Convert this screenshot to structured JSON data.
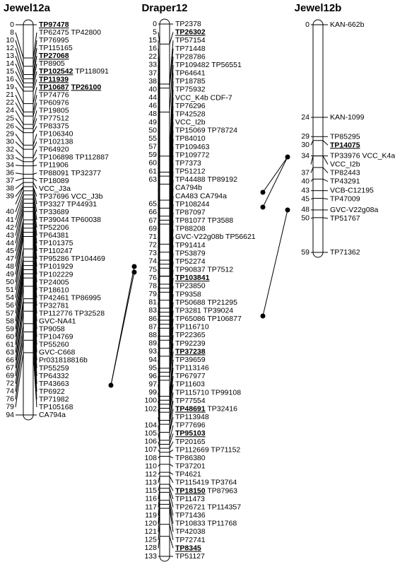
{
  "groups": [
    {
      "title": "Jewel12a",
      "markers": [
        {
          "pos": 0,
          "names": [
            {
              "text": "TP97478",
              "underline": true
            }
          ]
        },
        {
          "pos": 8,
          "names": [
            "TP62475",
            "TP42800"
          ]
        },
        {
          "pos": 10,
          "names": [
            "TP76995"
          ]
        },
        {
          "pos": 12,
          "names": [
            "TP115165"
          ]
        },
        {
          "pos": 13,
          "names": [
            {
              "text": "TP27068",
              "underline": true
            }
          ]
        },
        {
          "pos": 14,
          "names": [
            "TP8905"
          ]
        },
        {
          "pos": 15,
          "names": [
            {
              "text": "TP102542",
              "underline": true
            },
            "TP118091"
          ]
        },
        {
          "pos": 16,
          "names": [
            {
              "text": "TP11939",
              "underline": true
            }
          ]
        },
        {
          "pos": 19,
          "names": [
            {
              "text": "TP10687",
              "underline": true
            },
            {
              "text": "TP26100",
              "underline": true
            }
          ]
        },
        {
          "pos": 21,
          "names": [
            "TP74776"
          ]
        },
        {
          "pos": 22,
          "names": [
            "TP60976"
          ]
        },
        {
          "pos": 24,
          "names": [
            "TP19805"
          ]
        },
        {
          "pos": 25,
          "names": [
            "TP77512"
          ]
        },
        {
          "pos": 26,
          "names": [
            "TP83375"
          ]
        },
        {
          "pos": 29,
          "names": [
            "TP106340"
          ]
        },
        {
          "pos": 30,
          "names": [
            "TP102138"
          ]
        },
        {
          "pos": 32,
          "names": [
            "TP64920"
          ]
        },
        {
          "pos": 33,
          "names": [
            "TP106898",
            "TP112887"
          ]
        },
        {
          "pos": 34,
          "names": [
            "TP11906"
          ]
        },
        {
          "pos": 36,
          "names": [
            "TP88091",
            "TP32377"
          ]
        },
        {
          "pos": 37,
          "names": [
            "TP18089"
          ]
        },
        {
          "pos": 38,
          "names": [
            "VCC_J3a"
          ]
        },
        {
          "pos": 39,
          "names": [
            "TP37696",
            "VCC_J3b"
          ]
        },
        {
          "pos": null,
          "names": [
            "TP3327",
            "TP44931"
          ]
        },
        {
          "pos": 40,
          "names": [
            "TP33689"
          ]
        },
        {
          "pos": 41,
          "names": [
            "TP39044",
            "TP60038"
          ]
        },
        {
          "pos": 42,
          "names": [
            "TP52206"
          ]
        },
        {
          "pos": 43,
          "names": [
            "TP64381"
          ]
        },
        {
          "pos": 44,
          "names": [
            "TP101375"
          ]
        },
        {
          "pos": 45,
          "names": [
            "TP110247"
          ]
        },
        {
          "pos": 47,
          "names": [
            "TP95286",
            "TP104469"
          ]
        },
        {
          "pos": 48,
          "names": [
            "TP101929"
          ]
        },
        {
          "pos": 49,
          "names": [
            "TP102229"
          ]
        },
        {
          "pos": 50,
          "names": [
            "TP24005"
          ]
        },
        {
          "pos": 51,
          "names": [
            "TP18610"
          ]
        },
        {
          "pos": 54,
          "names": [
            "TP42461",
            "TP86995"
          ]
        },
        {
          "pos": 56,
          "names": [
            "TP32781"
          ]
        },
        {
          "pos": 57,
          "names": [
            "TP112776",
            "TP32528"
          ]
        },
        {
          "pos": 58,
          "names": [
            "GVC-NA41"
          ]
        },
        {
          "pos": 59,
          "names": [
            "TP9058"
          ]
        },
        {
          "pos": 60,
          "names": [
            "TP104769"
          ]
        },
        {
          "pos": 61,
          "names": [
            "TP55260"
          ]
        },
        {
          "pos": 63,
          "names": [
            "GVC-C668"
          ]
        },
        {
          "pos": 66,
          "names": [
            "Pr031818816b"
          ]
        },
        {
          "pos": 67,
          "names": [
            "TP55259"
          ]
        },
        {
          "pos": 69,
          "names": [
            "TP64332"
          ]
        },
        {
          "pos": 72,
          "names": [
            "TP43663"
          ]
        },
        {
          "pos": 74,
          "names": [
            "TP6922"
          ]
        },
        {
          "pos": 76,
          "names": [
            "TP71982"
          ]
        },
        {
          "pos": 79,
          "names": [
            "TP105168"
          ]
        },
        {
          "pos": 94,
          "names": [
            "CA794a"
          ]
        }
      ]
    },
    {
      "title": "Draper12",
      "markers": [
        {
          "pos": 0,
          "names": [
            "TP2378"
          ]
        },
        {
          "pos": 5,
          "names": [
            {
              "text": "TP26302",
              "underline": true
            }
          ]
        },
        {
          "pos": 15,
          "names": [
            "TP57154"
          ]
        },
        {
          "pos": 16,
          "names": [
            "TP71448"
          ]
        },
        {
          "pos": 22,
          "names": [
            "TP28786"
          ]
        },
        {
          "pos": 33,
          "names": [
            "TP109482",
            "TP56551"
          ]
        },
        {
          "pos": 37,
          "names": [
            "TP64641"
          ]
        },
        {
          "pos": 38,
          "names": [
            "TP18785"
          ]
        },
        {
          "pos": 40,
          "names": [
            "TP75932"
          ]
        },
        {
          "pos": 44,
          "names": [
            "VCC_K4b",
            "CDF-7"
          ]
        },
        {
          "pos": 46,
          "names": [
            "TP76296"
          ]
        },
        {
          "pos": 48,
          "names": [
            "TP42528"
          ]
        },
        {
          "pos": 49,
          "names": [
            "VCC_I2b"
          ]
        },
        {
          "pos": 50,
          "names": [
            "TP15069",
            "TP78724"
          ]
        },
        {
          "pos": 55,
          "names": [
            "TP84010"
          ]
        },
        {
          "pos": 57,
          "names": [
            "TP109463"
          ]
        },
        {
          "pos": 59,
          "names": [
            "TP109772"
          ]
        },
        {
          "pos": 60,
          "names": [
            "TP7373"
          ]
        },
        {
          "pos": 61,
          "names": [
            "TP51212"
          ]
        },
        {
          "pos": 63,
          "names": [
            "TP44488",
            "TP89192"
          ]
        },
        {
          "pos": null,
          "names": [
            "CA794b"
          ]
        },
        {
          "pos": null,
          "names": [
            "CA483",
            "CA794a"
          ]
        },
        {
          "pos": 65,
          "names": [
            "TP108244"
          ]
        },
        {
          "pos": 66,
          "names": [
            "TP87097"
          ]
        },
        {
          "pos": 67,
          "names": [
            "TP81077",
            "TP3588"
          ]
        },
        {
          "pos": 69,
          "names": [
            "TP88208"
          ]
        },
        {
          "pos": 71,
          "names": [
            "GVC-V22g08b",
            "TP56621"
          ]
        },
        {
          "pos": 72,
          "names": [
            "TP91414"
          ]
        },
        {
          "pos": 73,
          "names": [
            "TP53879"
          ]
        },
        {
          "pos": 74,
          "names": [
            "TP52274"
          ]
        },
        {
          "pos": 75,
          "names": [
            "TP90837",
            "TP7512"
          ]
        },
        {
          "pos": 76,
          "names": [
            {
              "text": "TP103841",
              "underline": true
            }
          ]
        },
        {
          "pos": 78,
          "names": [
            "TP23850"
          ]
        },
        {
          "pos": 79,
          "names": [
            "TP9358"
          ]
        },
        {
          "pos": 81,
          "names": [
            "TP50688",
            "TP21295"
          ]
        },
        {
          "pos": 83,
          "names": [
            "TP3281",
            "TP39024"
          ]
        },
        {
          "pos": 86,
          "names": [
            "TP65086",
            "TP106877"
          ]
        },
        {
          "pos": 87,
          "names": [
            "TP116710"
          ]
        },
        {
          "pos": 88,
          "names": [
            "TP22365"
          ]
        },
        {
          "pos": 89,
          "names": [
            "TP92239"
          ]
        },
        {
          "pos": 93,
          "names": [
            {
              "text": "TP37238",
              "underline": true
            }
          ]
        },
        {
          "pos": 94,
          "names": [
            "TP39659"
          ]
        },
        {
          "pos": 95,
          "names": [
            "TP113146"
          ]
        },
        {
          "pos": 96,
          "names": [
            "TP67977"
          ]
        },
        {
          "pos": 97,
          "names": [
            "TP11603"
          ]
        },
        {
          "pos": 99,
          "names": [
            "TP115710",
            "TP99108"
          ]
        },
        {
          "pos": 100,
          "names": [
            "TP77554"
          ]
        },
        {
          "pos": 102,
          "names": [
            {
              "text": "TP48691",
              "underline": true
            },
            "TP32416"
          ]
        },
        {
          "pos": null,
          "names": [
            "TP113948"
          ]
        },
        {
          "pos": 104,
          "names": [
            "TP77696"
          ]
        },
        {
          "pos": 105,
          "names": [
            {
              "text": "TP95103",
              "underline": true
            }
          ]
        },
        {
          "pos": 106,
          "names": [
            "TP20165"
          ]
        },
        {
          "pos": 107,
          "names": [
            "TP112669",
            "TP71152"
          ]
        },
        {
          "pos": 108,
          "names": [
            "TP86380"
          ]
        },
        {
          "pos": 110,
          "names": [
            "TP37201"
          ]
        },
        {
          "pos": 112,
          "names": [
            "TP4621"
          ]
        },
        {
          "pos": 113,
          "names": [
            "TP115419",
            "TP3764"
          ]
        },
        {
          "pos": 115,
          "names": [
            {
              "text": "TP18150",
              "underline": true
            },
            "TP87963"
          ]
        },
        {
          "pos": 116,
          "names": [
            "TP11473"
          ]
        },
        {
          "pos": 117,
          "names": [
            "TP26721",
            "TP114357"
          ]
        },
        {
          "pos": 119,
          "names": [
            "TP71436"
          ]
        },
        {
          "pos": 120,
          "names": [
            "TP10833",
            "TP11768"
          ]
        },
        {
          "pos": 121,
          "names": [
            "TP42038"
          ]
        },
        {
          "pos": 125,
          "names": [
            "TP72741"
          ]
        },
        {
          "pos": 128,
          "names": [
            {
              "text": "TP8345",
              "underline": true
            }
          ]
        },
        {
          "pos": 133,
          "names": [
            "TP51127"
          ]
        }
      ]
    },
    {
      "title": "Jewel12b",
      "markers": [
        {
          "pos": 0,
          "names": [
            "KAN-662b"
          ]
        },
        {
          "pos": 24,
          "names": [
            "KAN-1099"
          ]
        },
        {
          "pos": 29,
          "names": [
            "TP85295"
          ]
        },
        {
          "pos": 30,
          "names": [
            {
              "text": "TP14075",
              "underline": true
            }
          ]
        },
        {
          "pos": 34,
          "names": [
            "TP33976",
            "VCC_K4a"
          ]
        },
        {
          "pos": null,
          "names": [
            "VCC_I2b"
          ]
        },
        {
          "pos": 37,
          "names": [
            "TP82443"
          ]
        },
        {
          "pos": 40,
          "names": [
            "TP43291"
          ]
        },
        {
          "pos": 43,
          "names": [
            "VCB-C12195"
          ]
        },
        {
          "pos": 45,
          "names": [
            "TP47009"
          ]
        },
        {
          "pos": 48,
          "names": [
            "GVC-V22g08a"
          ]
        },
        {
          "pos": 50,
          "names": [
            "TP51767"
          ]
        },
        {
          "pos": 59,
          "names": [
            "TP71362"
          ]
        }
      ]
    }
  ]
}
